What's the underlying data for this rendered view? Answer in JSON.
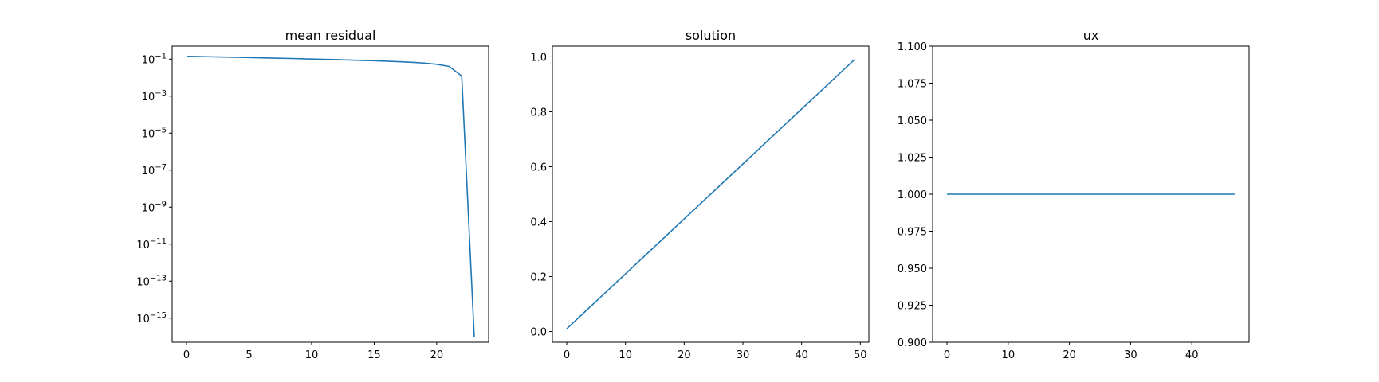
{
  "chart_data": [
    {
      "id": "residual",
      "type": "line",
      "title": "mean residual",
      "xlabel": "",
      "ylabel": "",
      "yscale": "log",
      "xlim": [
        -1.15,
        24.15
      ],
      "ylim": [
        5e-17,
        0.5
      ],
      "xticks": [
        0,
        5,
        10,
        15,
        20
      ],
      "yticks": [
        {
          "value": 0.1,
          "base": "10",
          "exp": "−1"
        },
        {
          "value": 0.001,
          "base": "10",
          "exp": "−3"
        },
        {
          "value": 1e-05,
          "base": "10",
          "exp": "−5"
        },
        {
          "value": 1e-07,
          "base": "10",
          "exp": "−7"
        },
        {
          "value": 1e-09,
          "base": "10",
          "exp": "−9"
        },
        {
          "value": 1e-11,
          "base": "10",
          "exp": "−11"
        },
        {
          "value": 1e-13,
          "base": "10",
          "exp": "−13"
        },
        {
          "value": 1e-15,
          "base": "10",
          "exp": "−15"
        }
      ],
      "grid": false,
      "color": "#1f77b4",
      "x": [
        0,
        1,
        2,
        3,
        4,
        5,
        6,
        7,
        8,
        9,
        10,
        11,
        12,
        13,
        14,
        15,
        16,
        17,
        18,
        19,
        20,
        21,
        22,
        23
      ],
      "y": [
        0.141,
        0.137,
        0.133,
        0.129,
        0.125,
        0.121,
        0.117,
        0.113,
        0.109,
        0.105,
        0.101,
        0.097,
        0.093,
        0.089,
        0.085,
        0.081,
        0.077,
        0.072,
        0.067,
        0.061,
        0.052,
        0.04,
        0.012,
        1e-16
      ]
    },
    {
      "id": "solution",
      "type": "line",
      "title": "solution",
      "xlabel": "",
      "ylabel": "",
      "yscale": "linear",
      "xlim": [
        -2.45,
        51.45
      ],
      "ylim": [
        -0.039,
        1.039
      ],
      "xticks": [
        0,
        10,
        20,
        30,
        40,
        50
      ],
      "yticks": [
        {
          "value": 0.0,
          "label": "0.0"
        },
        {
          "value": 0.2,
          "label": "0.2"
        },
        {
          "value": 0.4,
          "label": "0.4"
        },
        {
          "value": 0.6,
          "label": "0.6"
        },
        {
          "value": 0.8,
          "label": "0.8"
        },
        {
          "value": 1.0,
          "label": "1.0"
        }
      ],
      "grid": false,
      "color": "#1f77b4",
      "x": [
        0,
        49
      ],
      "y": [
        0.01,
        0.99
      ]
    },
    {
      "id": "ux",
      "type": "line",
      "title": "ux",
      "xlabel": "",
      "ylabel": "",
      "yscale": "linear",
      "xlim": [
        -2.35,
        49.35
      ],
      "ylim": [
        0.9,
        1.1
      ],
      "xticks": [
        0,
        10,
        20,
        30,
        40
      ],
      "yticks": [
        {
          "value": 0.9,
          "label": "0.900"
        },
        {
          "value": 0.925,
          "label": "0.925"
        },
        {
          "value": 0.95,
          "label": "0.950"
        },
        {
          "value": 0.975,
          "label": "0.975"
        },
        {
          "value": 1.0,
          "label": "1.000"
        },
        {
          "value": 1.025,
          "label": "1.025"
        },
        {
          "value": 1.05,
          "label": "1.050"
        },
        {
          "value": 1.075,
          "label": "1.075"
        },
        {
          "value": 1.1,
          "label": "1.100"
        }
      ],
      "grid": false,
      "color": "#1f77b4",
      "x": [
        0,
        47
      ],
      "y": [
        1.0,
        1.0
      ]
    }
  ]
}
